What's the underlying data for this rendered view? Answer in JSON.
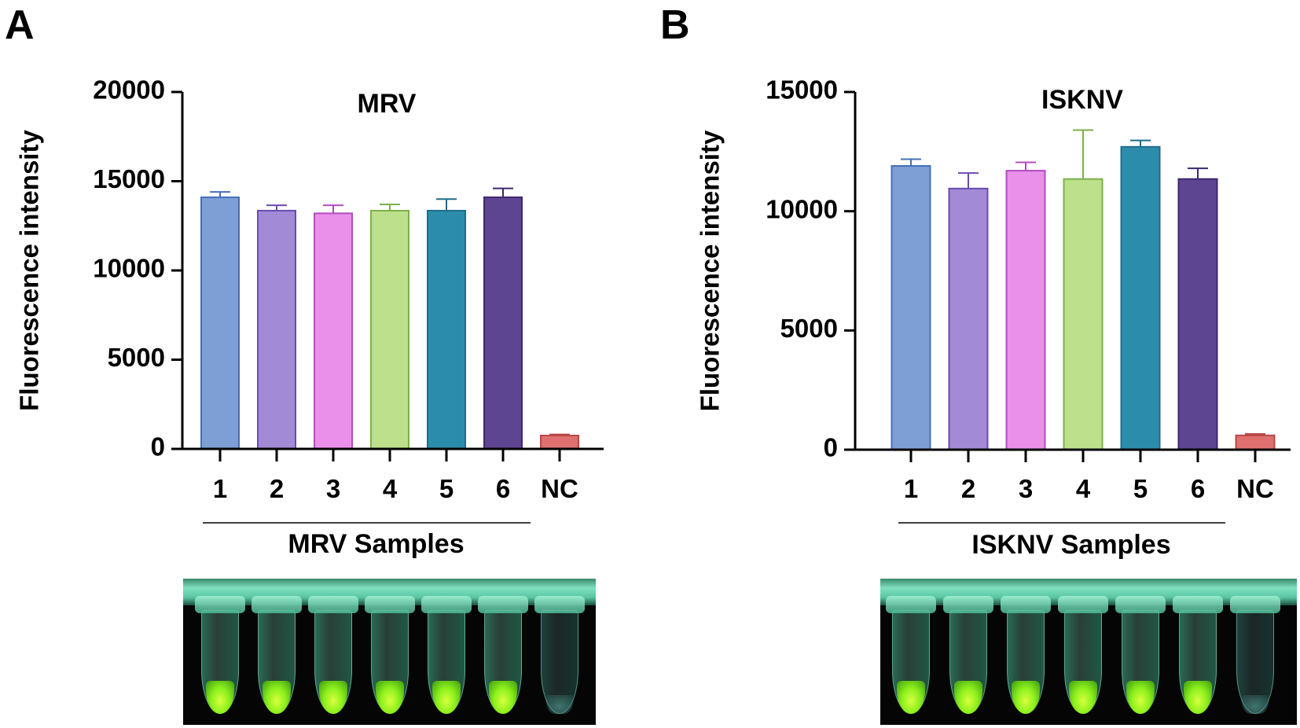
{
  "panels": [
    {
      "letter": "A",
      "chart_data": {
        "type": "bar",
        "title": "MRV",
        "ylabel": "Fluorescence intensity",
        "xlabel": "",
        "ylim": [
          0,
          20000
        ],
        "yticks": [
          0,
          5000,
          10000,
          15000,
          20000
        ],
        "categories": [
          "1",
          "2",
          "3",
          "4",
          "5",
          "6",
          "NC"
        ],
        "values": [
          14100,
          13350,
          13200,
          13350,
          13350,
          14100,
          750
        ],
        "errors": [
          300,
          300,
          450,
          350,
          650,
          500,
          60
        ],
        "colors": [
          "#7e9fd6",
          "#a28ad7",
          "#ea90ea",
          "#bde08c",
          "#2b8dab",
          "#5e4592",
          "#e07070"
        ],
        "edge_colors": [
          "#4470b8",
          "#6a4bb0",
          "#b44cc0",
          "#7cb04a",
          "#1f6e8a",
          "#3e2870",
          "#b84848"
        ],
        "group_label": "MRV Samples"
      },
      "tubes": [
        {
          "label": "1",
          "positive": true
        },
        {
          "label": "2",
          "positive": true
        },
        {
          "label": "3",
          "positive": true
        },
        {
          "label": "4",
          "positive": true
        },
        {
          "label": "5",
          "positive": true
        },
        {
          "label": "6",
          "positive": true
        },
        {
          "label": "NC",
          "positive": false
        }
      ]
    },
    {
      "letter": "B",
      "chart_data": {
        "type": "bar",
        "title": "ISKNV",
        "ylabel": "Fluorescence intensity",
        "xlabel": "",
        "ylim": [
          0,
          15000
        ],
        "yticks": [
          0,
          5000,
          10000,
          15000
        ],
        "categories": [
          "1",
          "2",
          "3",
          "4",
          "5",
          "6",
          "NC"
        ],
        "values": [
          11900,
          10950,
          11700,
          11350,
          12700,
          11350,
          600
        ],
        "errors": [
          280,
          650,
          350,
          2050,
          270,
          450,
          60
        ],
        "colors": [
          "#7e9fd6",
          "#a28ad7",
          "#ea90ea",
          "#bde08c",
          "#2b8dab",
          "#5e4592",
          "#e07070"
        ],
        "edge_colors": [
          "#4470b8",
          "#6a4bb0",
          "#b44cc0",
          "#7cb04a",
          "#1f6e8a",
          "#3e2870",
          "#b84848"
        ],
        "group_label": "ISKNV Samples"
      },
      "tubes": [
        {
          "label": "1",
          "positive": true
        },
        {
          "label": "2",
          "positive": true
        },
        {
          "label": "3",
          "positive": true
        },
        {
          "label": "4",
          "positive": true
        },
        {
          "label": "5",
          "positive": true
        },
        {
          "label": "6",
          "positive": true
        },
        {
          "label": "NC",
          "positive": false
        }
      ]
    }
  ]
}
